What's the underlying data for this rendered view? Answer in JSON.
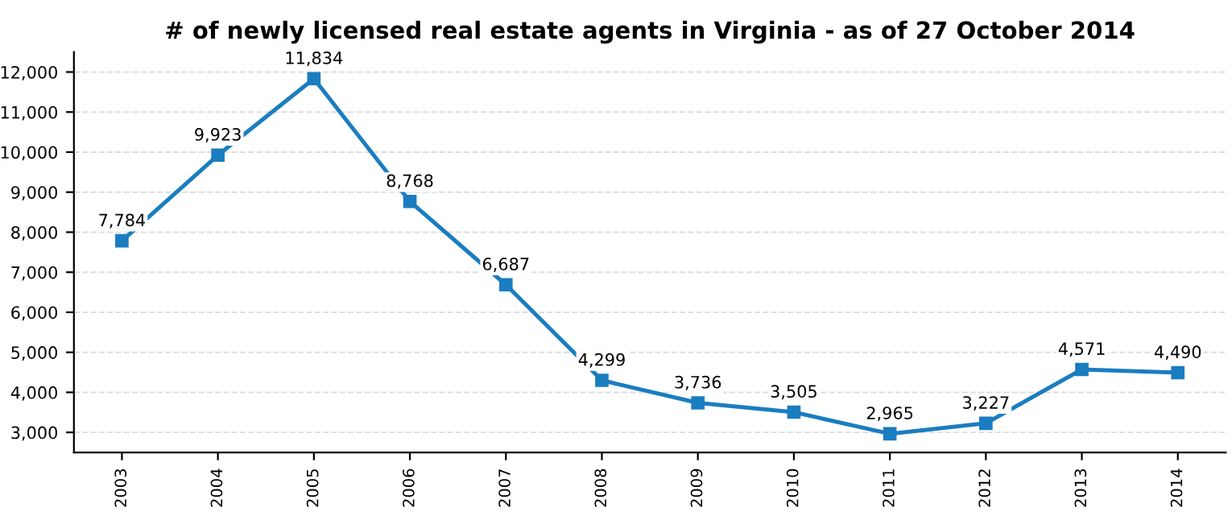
{
  "chart_data": {
    "type": "line",
    "title": "# of newly licensed real estate agents in Virginia - as of 27 October 2014",
    "categories": [
      "2003",
      "2004",
      "2005",
      "2006",
      "2007",
      "2008",
      "2009",
      "2010",
      "2011",
      "2012",
      "2013",
      "2014"
    ],
    "series": [
      {
        "color": "#1a7dc0",
        "values": [
          7784,
          9923,
          11834,
          8768,
          6687,
          4299,
          3736,
          3505,
          2965,
          3227,
          4571,
          4490
        ],
        "value_labels": [
          "7,784",
          "9,923",
          "11,834",
          "8,768",
          "6,687",
          "4,299",
          "3,736",
          "3,505",
          "2,965",
          "3,227",
          "4,571",
          "4,490"
        ]
      }
    ],
    "ylim": [
      2500,
      12500
    ],
    "yticks": [
      {
        "value": 3000,
        "label": "3,000"
      },
      {
        "value": 4000,
        "label": "4,000"
      },
      {
        "value": 5000,
        "label": "5,000"
      },
      {
        "value": 6000,
        "label": "6,000"
      },
      {
        "value": 7000,
        "label": "7,000"
      },
      {
        "value": 8000,
        "label": "8,000"
      },
      {
        "value": 9000,
        "label": "9,000"
      },
      {
        "value": 10000,
        "label": "10,000"
      },
      {
        "value": 11000,
        "label": "11,000"
      },
      {
        "value": 12000,
        "label": "12,000"
      }
    ],
    "grid": "y",
    "marker": "square",
    "line_style": "solid"
  }
}
